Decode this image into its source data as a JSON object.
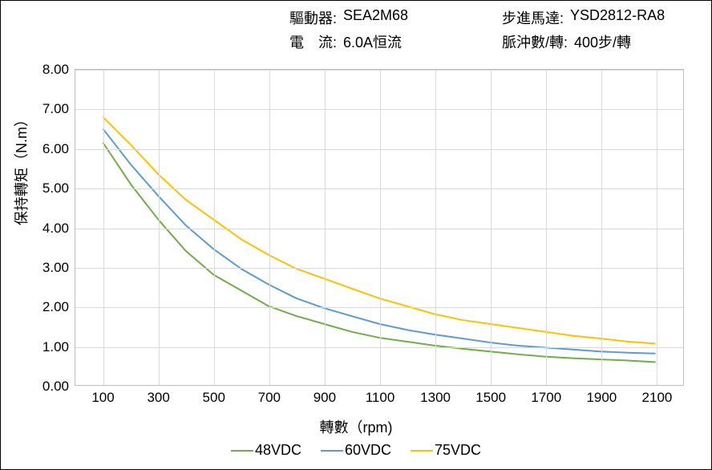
{
  "header": {
    "row1": {
      "driver_label": "驅動器:",
      "driver_value": "SEA2M68",
      "motor_label": "步進馬達:",
      "motor_value": "YSD2812-RA8"
    },
    "row2": {
      "current_label": "電　流:",
      "current_value": "6.0A恒流",
      "pulses_label": "脈沖數/轉:",
      "pulses_value": "400步/轉"
    }
  },
  "chart": {
    "type": "line",
    "x_label": "轉數（rpm)",
    "y_label": "保持轉矩（N.m）",
    "xlim": [
      0,
      2200
    ],
    "ylim": [
      0,
      8
    ],
    "y_ticks": [
      "0.00",
      "1.00",
      "2.00",
      "3.00",
      "4.00",
      "5.00",
      "6.00",
      "7.00",
      "8.00"
    ],
    "x_ticks": [
      100,
      300,
      500,
      700,
      900,
      1100,
      1300,
      1500,
      1700,
      1900,
      2100
    ],
    "grid_color": "#d9d9d9",
    "border_color": "#bfbfbf",
    "background_color": "#ffffff",
    "label_fontsize": 18,
    "tick_fontsize": 17,
    "line_width": 2,
    "series": [
      {
        "name": "48VDC",
        "color": "#70ad47",
        "x": [
          100,
          200,
          300,
          400,
          500,
          600,
          700,
          800,
          900,
          1000,
          1100,
          1200,
          1300,
          1400,
          1500,
          1600,
          1700,
          1800,
          1900,
          2000,
          2100
        ],
        "y": [
          6.15,
          5.1,
          4.2,
          3.4,
          2.8,
          2.4,
          2.0,
          1.75,
          1.55,
          1.35,
          1.2,
          1.1,
          1.0,
          0.92,
          0.85,
          0.78,
          0.72,
          0.68,
          0.65,
          0.62,
          0.58
        ]
      },
      {
        "name": "60VDC",
        "color": "#5b9bd5",
        "x": [
          100,
          200,
          300,
          400,
          500,
          600,
          700,
          800,
          900,
          1000,
          1100,
          1200,
          1300,
          1400,
          1500,
          1600,
          1700,
          1800,
          1900,
          2000,
          2100
        ],
        "y": [
          6.5,
          5.6,
          4.8,
          4.05,
          3.45,
          2.95,
          2.55,
          2.2,
          1.95,
          1.75,
          1.55,
          1.4,
          1.28,
          1.18,
          1.08,
          1.0,
          0.95,
          0.9,
          0.85,
          0.82,
          0.8
        ]
      },
      {
        "name": "75VDC",
        "color": "#ffc000",
        "x": [
          100,
          200,
          300,
          400,
          500,
          600,
          700,
          800,
          900,
          1000,
          1100,
          1200,
          1300,
          1400,
          1500,
          1600,
          1700,
          1800,
          1900,
          2000,
          2100
        ],
        "y": [
          6.8,
          6.1,
          5.35,
          4.7,
          4.2,
          3.7,
          3.3,
          2.95,
          2.7,
          2.45,
          2.2,
          2.0,
          1.8,
          1.65,
          1.55,
          1.45,
          1.35,
          1.25,
          1.18,
          1.1,
          1.05
        ]
      }
    ],
    "legend": {
      "position": "bottom",
      "fontsize": 18
    }
  }
}
